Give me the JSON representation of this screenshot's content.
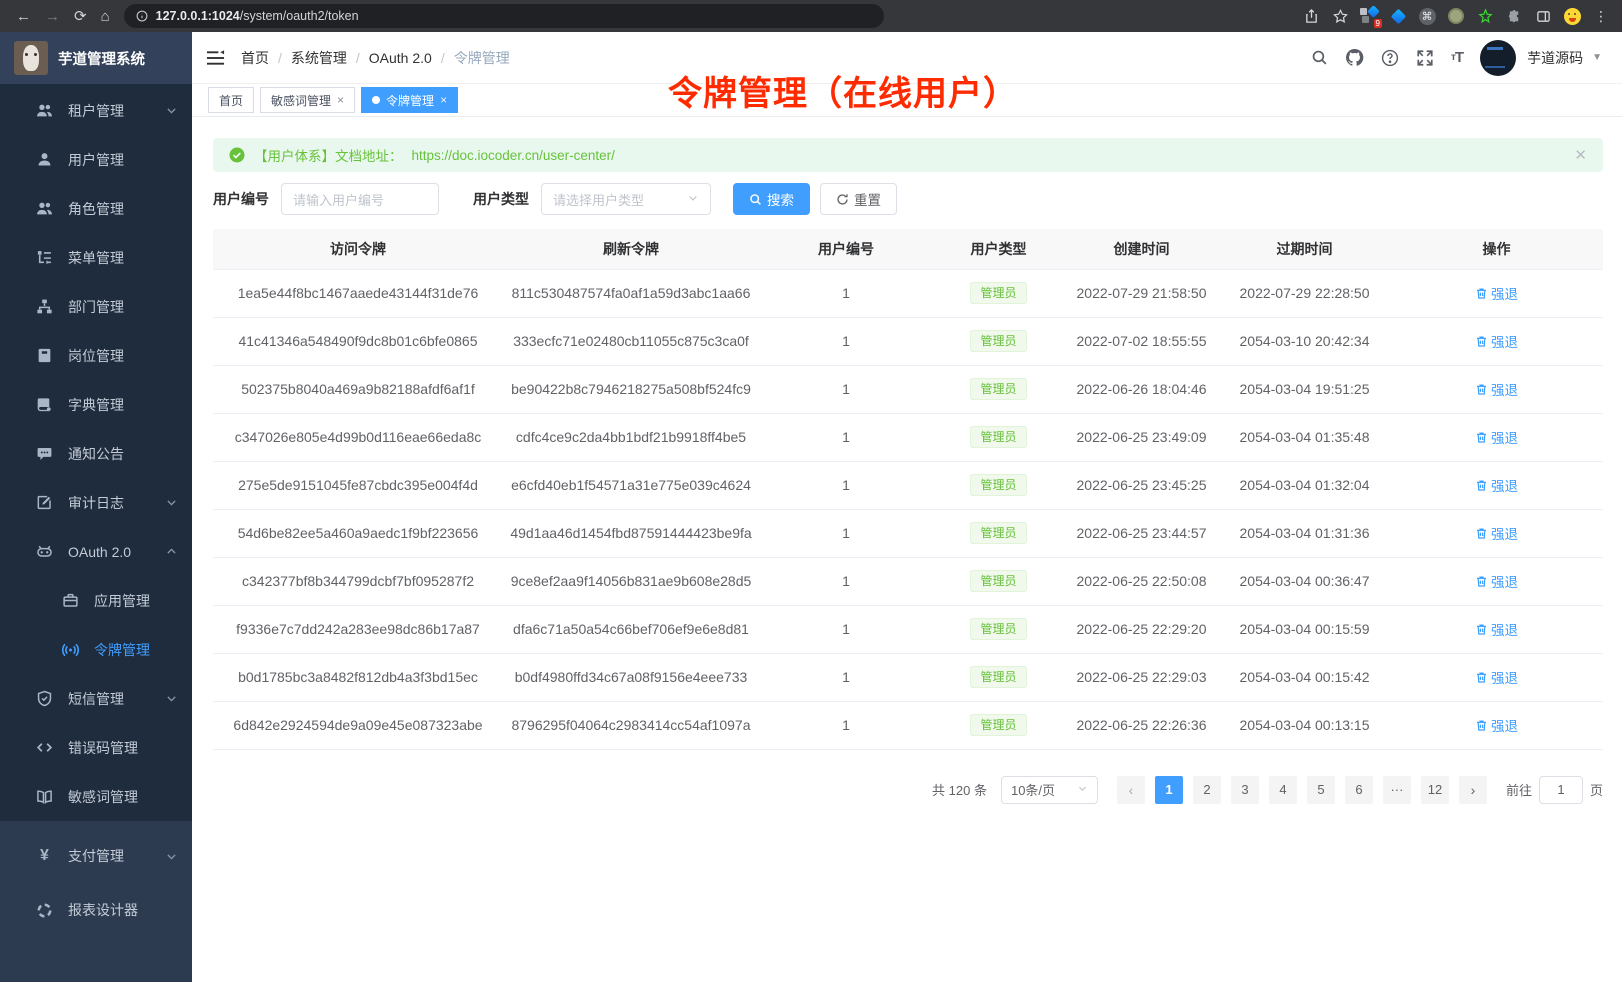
{
  "colors": {
    "accent": "#409eff",
    "success": "#67c23a",
    "annotation_red": "#ff2b00"
  },
  "browser": {
    "url_host": "127.0.0.1:1024",
    "url_path": "/system/oauth2/token",
    "extensions_badge": "9"
  },
  "sidebar": {
    "title": "芋道管理系统",
    "items": [
      {
        "id": "tenant",
        "label": "租户管理",
        "icon": "users",
        "chevron": "down"
      },
      {
        "id": "user",
        "label": "用户管理",
        "icon": "user"
      },
      {
        "id": "role",
        "label": "角色管理",
        "icon": "users"
      },
      {
        "id": "menu",
        "label": "菜单管理",
        "icon": "tree"
      },
      {
        "id": "dept",
        "label": "部门管理",
        "icon": "org"
      },
      {
        "id": "post",
        "label": "岗位管理",
        "icon": "badge"
      },
      {
        "id": "dict",
        "label": "字典管理",
        "icon": "dict"
      },
      {
        "id": "notice",
        "label": "通知公告",
        "icon": "message"
      },
      {
        "id": "audit-log",
        "label": "审计日志",
        "icon": "log",
        "chevron": "down"
      },
      {
        "id": "oauth2",
        "label": "OAuth 2.0",
        "icon": "robot",
        "chevron": "up"
      },
      {
        "id": "oauth2-application",
        "label": "应用管理",
        "icon": "app",
        "sub": true
      },
      {
        "id": "oauth2-token",
        "label": "令牌管理",
        "icon": "token",
        "sub": true,
        "active": true
      },
      {
        "id": "sms",
        "label": "短信管理",
        "icon": "shield",
        "chevron": "down"
      },
      {
        "id": "error-code",
        "label": "错误码管理",
        "icon": "code"
      },
      {
        "id": "sensitive-word",
        "label": "敏感词管理",
        "icon": "book"
      },
      {
        "id": "pay",
        "label": "支付管理",
        "icon": "yen",
        "chevron": "down",
        "section": "bottom"
      },
      {
        "id": "report-designer",
        "label": "报表设计器",
        "icon": "report",
        "section": "bottom"
      }
    ]
  },
  "header": {
    "breadcrumb": [
      "首页",
      "系统管理",
      "OAuth 2.0",
      "令牌管理"
    ],
    "user_name": "芋道源码"
  },
  "annotation": "令牌管理（在线用户）",
  "tabs": [
    {
      "label": "首页",
      "closable": false,
      "active": false
    },
    {
      "label": "敏感词管理",
      "closable": true,
      "active": false
    },
    {
      "label": "令牌管理",
      "closable": true,
      "active": true
    }
  ],
  "alert": {
    "text": "【用户体系】文档地址：",
    "link": "https://doc.iocoder.cn/user-center/"
  },
  "filters": {
    "user_id_label": "用户编号",
    "user_id_placeholder": "请输入用户编号",
    "user_type_label": "用户类型",
    "user_type_placeholder": "请选择用户类型",
    "search_label": "搜索",
    "reset_label": "重置"
  },
  "table": {
    "columns": [
      "访问令牌",
      "刷新令牌",
      "用户编号",
      "用户类型",
      "创建时间",
      "过期时间",
      "操作"
    ],
    "action_label": "强退",
    "rows": [
      {
        "access": "1ea5e44f8bc1467aaede43144f31de76",
        "refresh": "811c530487574fa0af1a59d3abc1aa66",
        "user_id": "1",
        "user_type": "管理员",
        "created": "2022-07-29 21:58:50",
        "expires": "2022-07-29 22:28:50"
      },
      {
        "access": "41c41346a548490f9dc8b01c6bfe0865",
        "refresh": "333ecfc71e02480cb11055c875c3ca0f",
        "user_id": "1",
        "user_type": "管理员",
        "created": "2022-07-02 18:55:55",
        "expires": "2054-03-10 20:42:34"
      },
      {
        "access": "502375b8040a469a9b82188afdf6af1f",
        "refresh": "be90422b8c7946218275a508bf524fc9",
        "user_id": "1",
        "user_type": "管理员",
        "created": "2022-06-26 18:04:46",
        "expires": "2054-03-04 19:51:25"
      },
      {
        "access": "c347026e805e4d99b0d116eae66eda8c",
        "refresh": "cdfc4ce9c2da4bb1bdf21b9918ff4be5",
        "user_id": "1",
        "user_type": "管理员",
        "created": "2022-06-25 23:49:09",
        "expires": "2054-03-04 01:35:48"
      },
      {
        "access": "275e5de9151045fe87cbdc395e004f4d",
        "refresh": "e6cfd40eb1f54571a31e775e039c4624",
        "user_id": "1",
        "user_type": "管理员",
        "created": "2022-06-25 23:45:25",
        "expires": "2054-03-04 01:32:04"
      },
      {
        "access": "54d6be82ee5a460a9aedc1f9bf223656",
        "refresh": "49d1aa46d1454fbd87591444423be9fa",
        "user_id": "1",
        "user_type": "管理员",
        "created": "2022-06-25 23:44:57",
        "expires": "2054-03-04 01:31:36"
      },
      {
        "access": "c342377bf8b344799dcbf7bf095287f2",
        "refresh": "9ce8ef2aa9f14056b831ae9b608e28d5",
        "user_id": "1",
        "user_type": "管理员",
        "created": "2022-06-25 22:50:08",
        "expires": "2054-03-04 00:36:47"
      },
      {
        "access": "f9336e7c7dd242a283ee98dc86b17a87",
        "refresh": "dfa6c71a50a54c66bef706ef9e6e8d81",
        "user_id": "1",
        "user_type": "管理员",
        "created": "2022-06-25 22:29:20",
        "expires": "2054-03-04 00:15:59"
      },
      {
        "access": "b0d1785bc3a8482f812db4a3f3bd15ec",
        "refresh": "b0df4980ffd34c67a08f9156e4eee733",
        "user_id": "1",
        "user_type": "管理员",
        "created": "2022-06-25 22:29:03",
        "expires": "2054-03-04 00:15:42"
      },
      {
        "access": "6d842e2924594de9a09e45e087323abe",
        "refresh": "8796295f04064c2983414cc54af1097a",
        "user_id": "1",
        "user_type": "管理员",
        "created": "2022-06-25 22:26:36",
        "expires": "2054-03-04 00:13:15"
      }
    ]
  },
  "pagination": {
    "total": "共 120 条",
    "page_size": "10条/页",
    "pages": [
      {
        "label": "1",
        "active": true
      },
      {
        "label": "2"
      },
      {
        "label": "3"
      },
      {
        "label": "4"
      },
      {
        "label": "5"
      },
      {
        "label": "6"
      },
      {
        "label": "···",
        "ellipsis": true
      },
      {
        "label": "12"
      }
    ],
    "goto_label": "前往",
    "goto_value": "1",
    "goto_suffix": "页"
  }
}
